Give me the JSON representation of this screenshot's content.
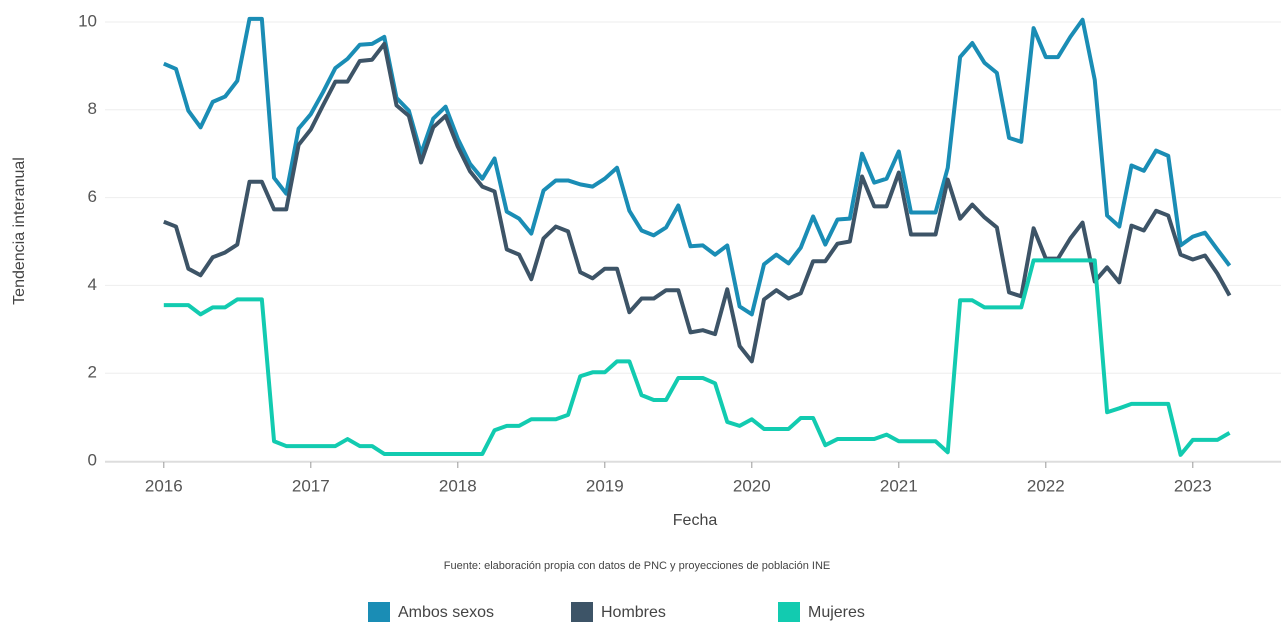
{
  "chart_data": {
    "type": "line",
    "xlabel": "Fecha",
    "ylabel": "Tendencia interanual",
    "caption": "Fuente: elaboración propia con datos de PNC y proyecciones de población INE",
    "x": [
      2016,
      2016.083,
      2016.167,
      2016.25,
      2016.333,
      2016.417,
      2016.5,
      2016.583,
      2016.667,
      2016.75,
      2016.833,
      2016.917,
      2017,
      2017.083,
      2017.167,
      2017.25,
      2017.333,
      2017.417,
      2017.5,
      2017.583,
      2017.667,
      2017.75,
      2017.833,
      2017.917,
      2018,
      2018.083,
      2018.167,
      2018.25,
      2018.333,
      2018.417,
      2018.5,
      2018.583,
      2018.667,
      2018.75,
      2018.833,
      2018.917,
      2019,
      2019.083,
      2019.167,
      2019.25,
      2019.333,
      2019.417,
      2019.5,
      2019.583,
      2019.667,
      2019.75,
      2019.833,
      2019.917,
      2020,
      2020.083,
      2020.167,
      2020.25,
      2020.333,
      2020.417,
      2020.5,
      2020.583,
      2020.667,
      2020.75,
      2020.833,
      2020.917,
      2021,
      2021.083,
      2021.167,
      2021.25,
      2021.333,
      2021.417,
      2021.5,
      2021.583,
      2021.667,
      2021.75,
      2021.833,
      2021.917,
      2022,
      2022.083,
      2022.167,
      2022.25,
      2022.333,
      2022.417,
      2022.5,
      2022.583,
      2022.667,
      2022.75,
      2022.833,
      2022.917,
      2023,
      2023.083,
      2023.167,
      2023.25
    ],
    "series": [
      {
        "name": "Ambos sexos",
        "color": "#1a8db5",
        "values": [
          9.05,
          8.93,
          7.98,
          7.6,
          8.18,
          8.3,
          8.66,
          10.07,
          10.07,
          6.45,
          6.09,
          7.57,
          7.9,
          8.4,
          8.95,
          9.16,
          9.48,
          9.5,
          9.66,
          8.27,
          7.98,
          7.0,
          7.8,
          8.07,
          7.34,
          6.77,
          6.43,
          6.89,
          5.68,
          5.52,
          5.18,
          6.16,
          6.39,
          6.39,
          6.3,
          6.25,
          6.43,
          6.68,
          5.7,
          5.25,
          5.14,
          5.32,
          5.82,
          4.89,
          4.91,
          4.7,
          4.91,
          3.52,
          3.34,
          4.48,
          4.7,
          4.5,
          4.86,
          5.57,
          4.93,
          5.5,
          5.52,
          7.0,
          6.34,
          6.43,
          7.05,
          5.66,
          5.66,
          5.66,
          6.68,
          9.2,
          9.52,
          9.07,
          8.84,
          7.36,
          7.27,
          9.86,
          9.2,
          9.2,
          9.66,
          10.05,
          8.68,
          5.59,
          5.34,
          6.73,
          6.61,
          7.07,
          6.95,
          4.91,
          5.11,
          5.2,
          4.82,
          4.45
        ]
      },
      {
        "name": "Hombres",
        "color": "#3d5467",
        "values": [
          5.45,
          5.34,
          4.38,
          4.23,
          4.64,
          4.75,
          4.93,
          6.36,
          6.36,
          5.73,
          5.73,
          7.2,
          7.55,
          8.1,
          8.64,
          8.64,
          9.11,
          9.14,
          9.5,
          8.1,
          7.86,
          6.8,
          7.6,
          7.86,
          7.16,
          6.6,
          6.25,
          6.14,
          4.82,
          4.7,
          4.14,
          5.07,
          5.34,
          5.23,
          4.3,
          4.16,
          4.38,
          4.38,
          3.39,
          3.7,
          3.7,
          3.89,
          3.89,
          2.93,
          2.98,
          2.89,
          3.91,
          2.62,
          2.27,
          3.68,
          3.89,
          3.7,
          3.82,
          4.55,
          4.55,
          4.95,
          5.0,
          6.48,
          5.8,
          5.8,
          6.57,
          5.16,
          5.16,
          5.16,
          6.41,
          5.52,
          5.84,
          5.55,
          5.32,
          3.84,
          3.75,
          5.3,
          4.61,
          4.61,
          5.07,
          5.43,
          4.09,
          4.41,
          4.07,
          5.36,
          5.25,
          5.7,
          5.59,
          4.7,
          4.59,
          4.68,
          4.27,
          3.77
        ]
      },
      {
        "name": "Mujeres",
        "color": "#12cbb0",
        "values": [
          3.55,
          3.55,
          3.55,
          3.34,
          3.5,
          3.5,
          3.68,
          3.68,
          3.68,
          0.45,
          0.34,
          0.34,
          0.34,
          0.34,
          0.34,
          0.5,
          0.34,
          0.34,
          0.16,
          0.16,
          0.16,
          0.16,
          0.16,
          0.16,
          0.16,
          0.16,
          0.16,
          0.7,
          0.8,
          0.8,
          0.95,
          0.95,
          0.95,
          1.05,
          1.93,
          2.02,
          2.02,
          2.27,
          2.27,
          1.5,
          1.39,
          1.39,
          1.89,
          1.89,
          1.89,
          1.77,
          0.89,
          0.8,
          0.95,
          0.73,
          0.73,
          0.73,
          0.98,
          0.98,
          0.36,
          0.5,
          0.5,
          0.5,
          0.5,
          0.6,
          0.45,
          0.45,
          0.45,
          0.45,
          0.2,
          3.66,
          3.66,
          3.5,
          3.5,
          3.5,
          3.5,
          4.57,
          4.57,
          4.57,
          4.57,
          4.57,
          4.57,
          1.11,
          1.2,
          1.3,
          1.3,
          1.3,
          1.3,
          0.14,
          0.48,
          0.48,
          0.48,
          0.64
        ]
      }
    ],
    "xlim": [
      2015.6,
      2023.6
    ],
    "xticks": [
      2016,
      2017,
      2018,
      2019,
      2020,
      2021,
      2022,
      2023
    ],
    "ylim": [
      0,
      10.5
    ],
    "yticks": [
      0,
      2,
      4,
      6,
      8,
      10
    ],
    "grid": true,
    "legend": "bottom"
  }
}
